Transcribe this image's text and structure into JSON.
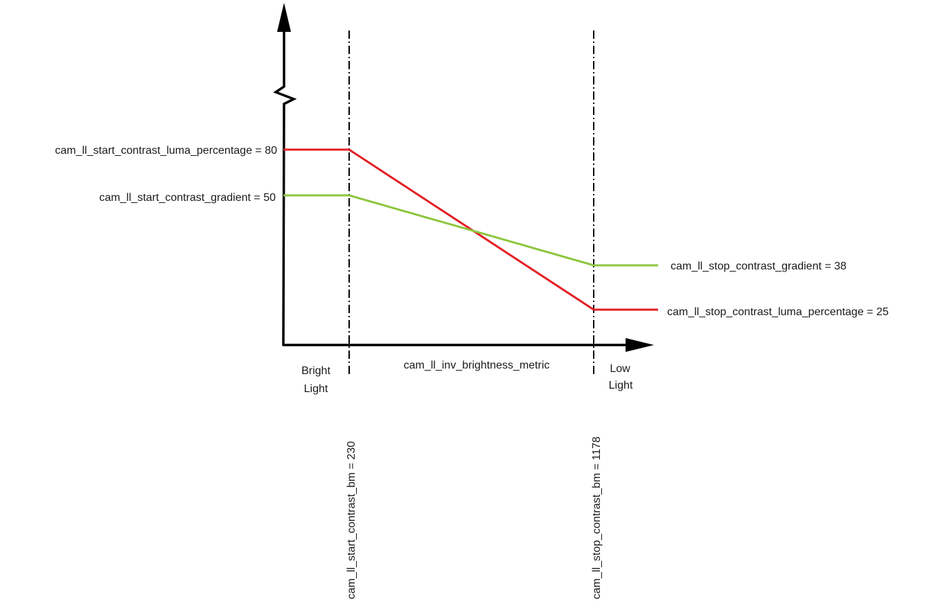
{
  "colors": {
    "luma": "#e31e24",
    "gradient": "#8dc63f",
    "axis": "#000000"
  },
  "labels": {
    "start_luma": "cam_ll_start_contrast_luma_percentage = 80",
    "start_gradient": "cam_ll_start_contrast_gradient = 50",
    "stop_gradient": "cam_ll_stop_contrast_gradient = 38",
    "stop_luma": "cam_ll_stop_contrast_luma_percentage = 25",
    "x_axis": "cam_ll_inv_brightness_metric",
    "bright_1": "Bright",
    "bright_2": "Light",
    "low_1": "Low",
    "low_2": "Light",
    "start_bm": "cam_ll_start_contrast_bm = 230",
    "stop_bm": "cam_ll_stop_contrast_bm = 1178"
  },
  "chart_data": {
    "type": "line",
    "x_breakpoints": [
      230,
      1178
    ],
    "series": [
      {
        "key": "luma",
        "start_value": 80,
        "stop_value": 25
      },
      {
        "key": "gradient",
        "start_value": 50,
        "stop_value": 38
      }
    ]
  }
}
